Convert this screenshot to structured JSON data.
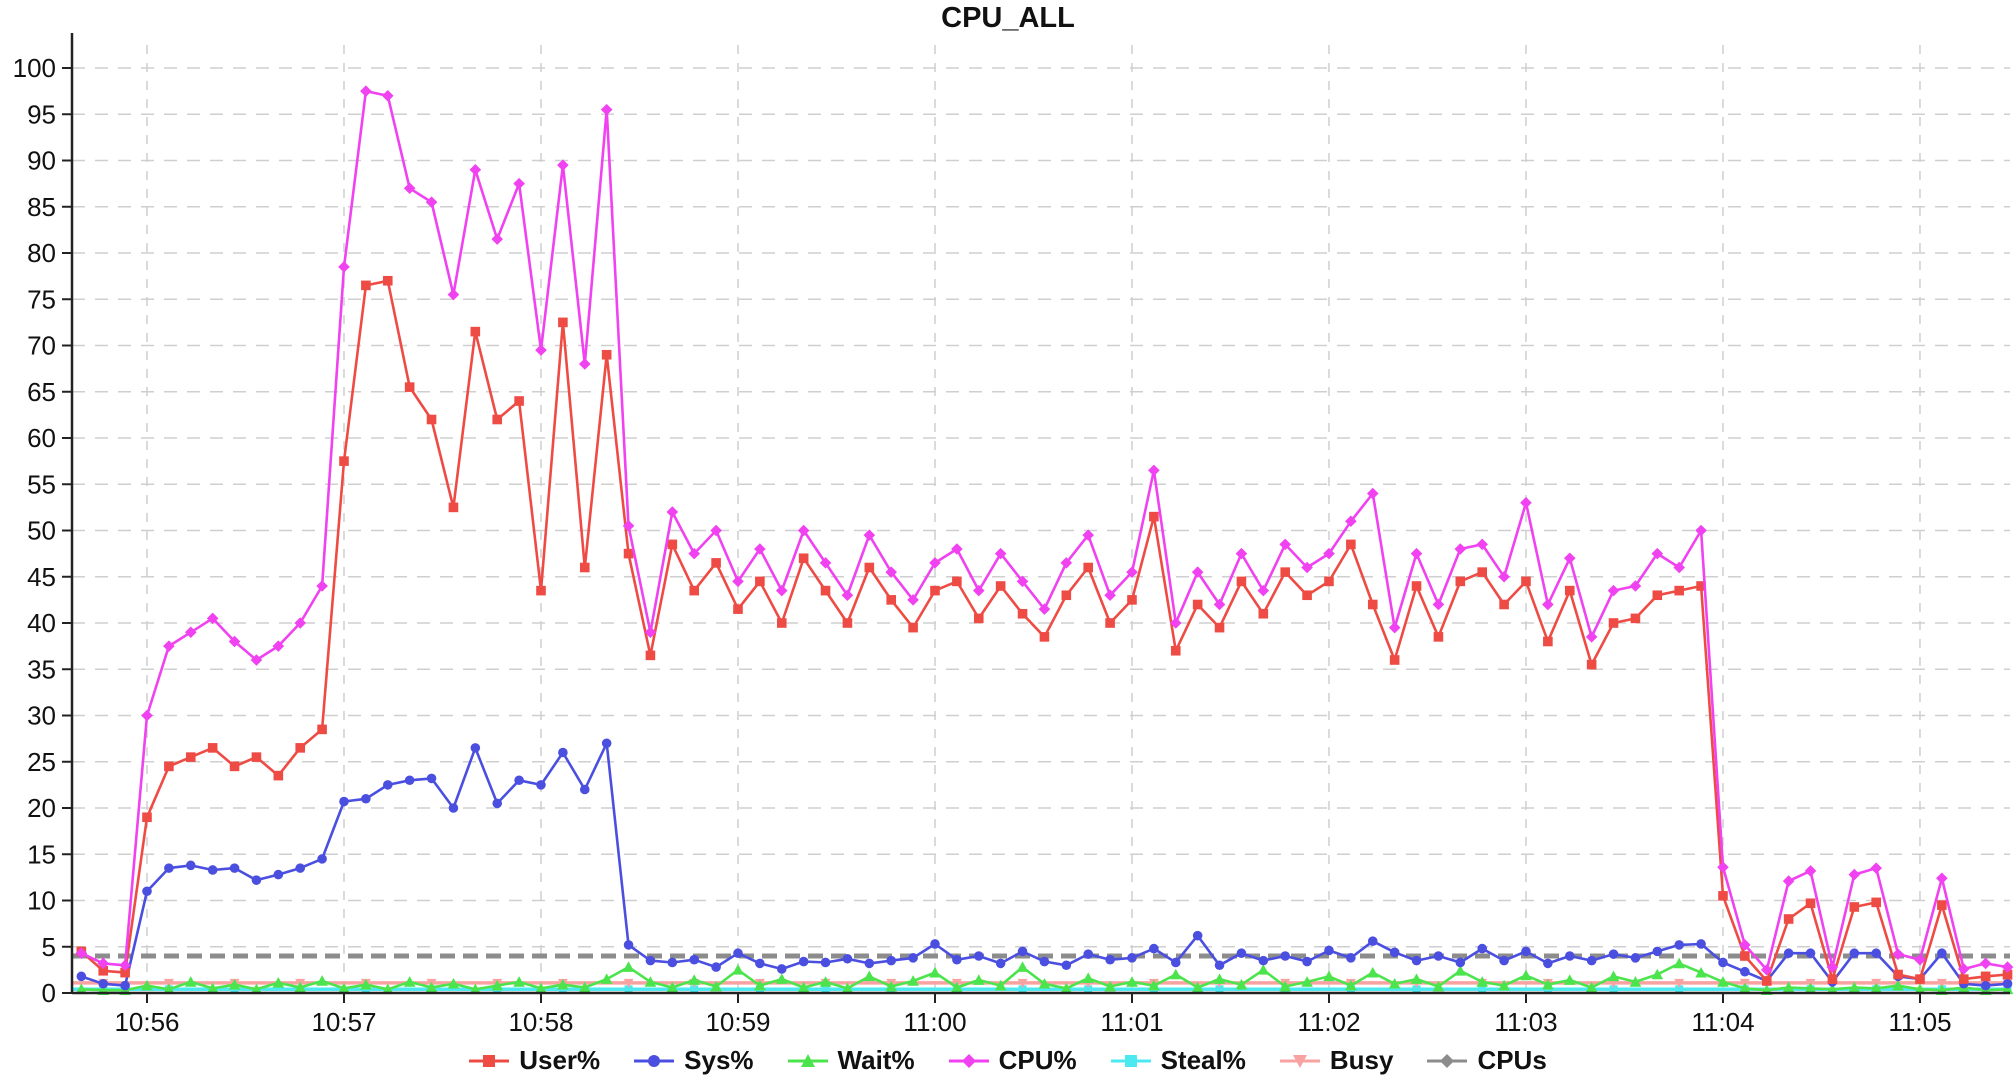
{
  "title": "CPU_ALL",
  "colors": {
    "user": "#ef4b45",
    "sys": "#4b4fe0",
    "wait": "#4ce44c",
    "cpu": "#f042f0",
    "steal": "#4de9f0",
    "busy": "#f9a2a2",
    "cpus": "#8c8c8c",
    "grid": "#cfcfcf",
    "axis": "#222222",
    "text": "#111111"
  },
  "chart_data": {
    "type": "line",
    "title": "CPU_ALL",
    "xlabel": "",
    "ylabel": "",
    "grid": true,
    "legend_position": "bottom",
    "y_axis": {
      "min": 0,
      "max": 100,
      "tick_step": 5
    },
    "x_axis": {
      "tick_labels": [
        "10:56",
        "10:57",
        "10:58",
        "10:59",
        "11:00",
        "11:01",
        "11:02",
        "11:03",
        "11:04",
        "11:05"
      ],
      "start_min": -0.3807,
      "end_min": 9.4569
    },
    "sampling": {
      "start_min": -0.33333,
      "step_min": 0.11111,
      "points": 89
    },
    "series": [
      {
        "name": "User%",
        "color": "#ef4b45",
        "marker": "square",
        "values": [
          4.5,
          2.4,
          2.2,
          19,
          24.5,
          25.5,
          26.5,
          24.5,
          25.5,
          23.5,
          26.5,
          28.5,
          57.5,
          76.5,
          77,
          65.5,
          62,
          52.5,
          71.5,
          62,
          64,
          43.5,
          72.5,
          46,
          69,
          47.5,
          36.5,
          48.5,
          43.5,
          46.5,
          41.5,
          44.5,
          40,
          47,
          43.5,
          40,
          46,
          42.5,
          39.5,
          43.5,
          44.5,
          40.5,
          44,
          41,
          38.5,
          43,
          46,
          40,
          42.5,
          51.5,
          37,
          42,
          39.5,
          44.5,
          41,
          45.5,
          43,
          44.5,
          48.5,
          42,
          36,
          44,
          38.5,
          44.5,
          45.5,
          42,
          44.5,
          38,
          43.5,
          35.5,
          40,
          40.5,
          43,
          43.5,
          44,
          10.5,
          4,
          1.3,
          8,
          9.7,
          1.5,
          9.3,
          9.8,
          2,
          1.5,
          9.5,
          1.5,
          1.8,
          2
        ]
      },
      {
        "name": "Sys%",
        "color": "#4b4fe0",
        "marker": "circle",
        "values": [
          1.8,
          1,
          0.8,
          11,
          13.5,
          13.8,
          13.3,
          13.5,
          12.2,
          12.8,
          13.5,
          14.5,
          20.7,
          21,
          22.5,
          23,
          23.2,
          20,
          26.5,
          20.5,
          23,
          22.5,
          26,
          22,
          27,
          5.2,
          3.5,
          3.3,
          3.6,
          2.8,
          4.3,
          3.2,
          2.6,
          3.4,
          3.3,
          3.7,
          3.2,
          3.5,
          3.8,
          5.3,
          3.6,
          4,
          3.2,
          4.5,
          3.4,
          3,
          4.2,
          3.6,
          3.8,
          4.8,
          3.3,
          6.2,
          3,
          4.3,
          3.5,
          4,
          3.4,
          4.6,
          3.8,
          5.6,
          4.4,
          3.5,
          4,
          3.3,
          4.8,
          3.5,
          4.5,
          3.2,
          4,
          3.5,
          4.2,
          3.8,
          4.5,
          5.2,
          5.3,
          3.3,
          2.3,
          1.3,
          4.3,
          4.3,
          1.2,
          4.3,
          4.3,
          1.8,
          1.5,
          4.3,
          1,
          0.8,
          1
        ]
      },
      {
        "name": "Wait%",
        "color": "#4ce44c",
        "marker": "triangle-up",
        "values": [
          0.4,
          0.3,
          0.3,
          0.8,
          0.4,
          1.2,
          0.5,
          0.9,
          0.4,
          1.1,
          0.6,
          1.3,
          0.5,
          0.9,
          0.4,
          1.2,
          0.6,
          1,
          0.4,
          0.8,
          1.2,
          0.5,
          0.9,
          0.6,
          1.5,
          2.8,
          1.2,
          0.6,
          1.4,
          0.7,
          2.5,
          0.8,
          1.5,
          0.6,
          1.2,
          0.5,
          1.8,
          0.7,
          1.3,
          2.2,
          0.6,
          1.4,
          0.8,
          2.8,
          1,
          0.5,
          1.6,
          0.7,
          1.2,
          0.8,
          2,
          0.6,
          1.5,
          0.9,
          2.5,
          0.7,
          1.2,
          1.8,
          0.8,
          2.2,
          1,
          1.5,
          0.7,
          2.4,
          1.2,
          0.8,
          1.9,
          0.9,
          1.4,
          0.6,
          1.8,
          1.2,
          2,
          3.2,
          2.2,
          1.2,
          0.5,
          0.3,
          0.6,
          0.5,
          0.4,
          0.6,
          0.5,
          0.8,
          0.4,
          0.3,
          0.6,
          0.3,
          0.4
        ]
      },
      {
        "name": "CPU%",
        "color": "#f042f0",
        "marker": "diamond",
        "values": [
          4.3,
          3.2,
          3,
          30,
          37.5,
          39,
          40.5,
          38,
          36,
          37.5,
          40,
          44,
          78.5,
          97.5,
          97,
          87,
          85.5,
          75.5,
          89,
          81.5,
          87.5,
          69.5,
          89.5,
          68,
          95.5,
          50.5,
          39,
          52,
          47.5,
          50,
          44.5,
          48,
          43.5,
          50,
          46.5,
          43,
          49.5,
          45.5,
          42.5,
          46.5,
          48,
          43.5,
          47.5,
          44.5,
          41.5,
          46.5,
          49.5,
          43,
          45.5,
          56.5,
          40,
          45.5,
          42,
          47.5,
          43.5,
          48.5,
          46,
          47.5,
          51,
          54,
          39.5,
          47.5,
          42,
          48,
          48.5,
          45,
          53,
          42,
          47,
          38.5,
          43.5,
          44,
          47.5,
          46,
          50,
          13.6,
          5.2,
          2.5,
          12.1,
          13.2,
          2.8,
          12.8,
          13.5,
          4.2,
          3.6,
          12.4,
          2.6,
          3.2,
          2.8
        ]
      },
      {
        "name": "Steal%",
        "color": "#4de9f0",
        "marker": "square",
        "constant": 0.4
      },
      {
        "name": "Busy",
        "color": "#f9a2a2",
        "marker": "triangle-down",
        "constant": 1.1
      },
      {
        "name": "CPUs",
        "color": "#8c8c8c",
        "marker": "dash",
        "constant": 4,
        "thick": true,
        "dashed": true
      }
    ]
  },
  "legend": {
    "items": [
      {
        "label": "User%"
      },
      {
        "label": "Sys%"
      },
      {
        "label": "Wait%"
      },
      {
        "label": "CPU%"
      },
      {
        "label": "Steal%"
      },
      {
        "label": "Busy"
      },
      {
        "label": "CPUs"
      }
    ]
  }
}
